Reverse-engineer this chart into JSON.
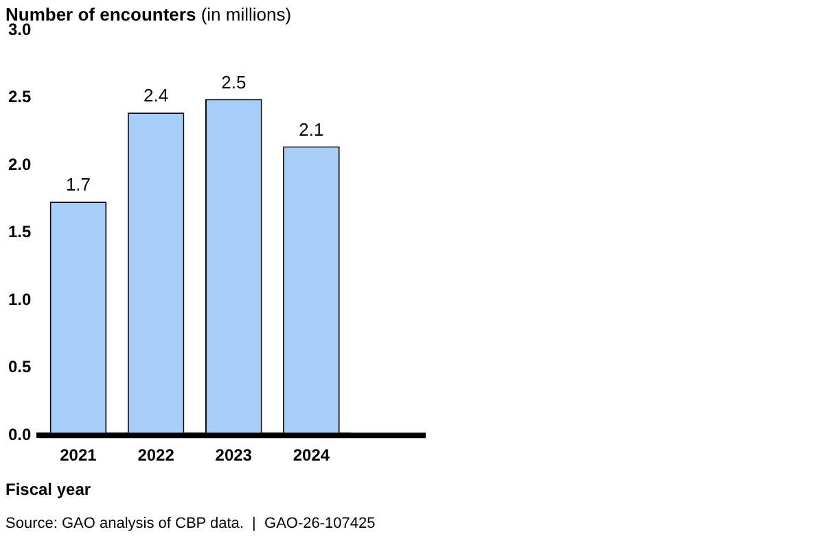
{
  "chart_data": {
    "type": "bar",
    "title": "Number of encounters",
    "subtitle": "(in millions)",
    "xlabel": "Fiscal year",
    "annotations": [
      "Source: GAO analysis of CBP data.  |  GAO-26-107425"
    ],
    "categories": [
      "2021",
      "2022",
      "2023",
      "2024"
    ],
    "values": [
      1.73,
      2.39,
      2.49,
      2.14
    ],
    "value_labels": [
      "1.7",
      "2.4",
      "2.5",
      "2.1"
    ],
    "color": "#a6cef8",
    "ylim": [
      0,
      3
    ],
    "yticks": [
      {
        "value": 0,
        "label": "0.0"
      },
      {
        "value": 0.5,
        "label": "0.5"
      },
      {
        "value": 1,
        "label": "1.0"
      },
      {
        "value": 1.5,
        "label": "1.5"
      },
      {
        "value": 2,
        "label": "2.0"
      },
      {
        "value": 2.5,
        "label": "2.5"
      },
      {
        "value": 3,
        "label": "3.0"
      }
    ],
    "grid": false
  }
}
